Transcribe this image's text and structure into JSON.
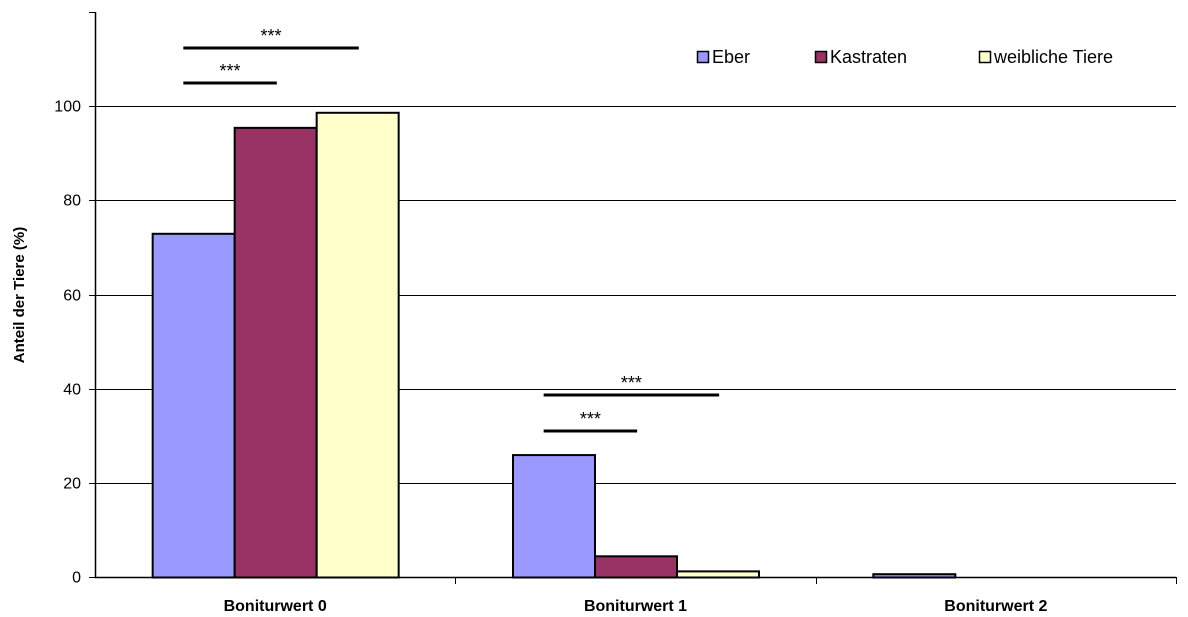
{
  "chart_data": {
    "type": "bar",
    "ylabel": "Anteil der Tiere (%)",
    "ylim": [
      0,
      120
    ],
    "yticks": [
      0,
      20,
      40,
      60,
      80,
      100
    ],
    "grid": true,
    "legend_position": "top-right",
    "categories": [
      "Boniturwert 0",
      "Boniturwert 1",
      "Boniturwert 2"
    ],
    "series": [
      {
        "name": "Eber",
        "values": [
          73,
          26,
          0.7
        ],
        "color": "#9999ff"
      },
      {
        "name": "Kastraten",
        "values": [
          95.5,
          4.5,
          0
        ],
        "color": "#993366"
      },
      {
        "name": "weibliche Tiere",
        "values": [
          98.7,
          1.3,
          0
        ],
        "color": "#ffffcc"
      }
    ],
    "annotations": [
      {
        "category": 0,
        "from_series": 0,
        "to_series": 2,
        "label": "***"
      },
      {
        "category": 0,
        "from_series": 0,
        "to_series": 1,
        "label": "***"
      },
      {
        "category": 1,
        "from_series": 0,
        "to_series": 2,
        "label": "***"
      },
      {
        "category": 1,
        "from_series": 0,
        "to_series": 1,
        "label": "***"
      }
    ]
  }
}
